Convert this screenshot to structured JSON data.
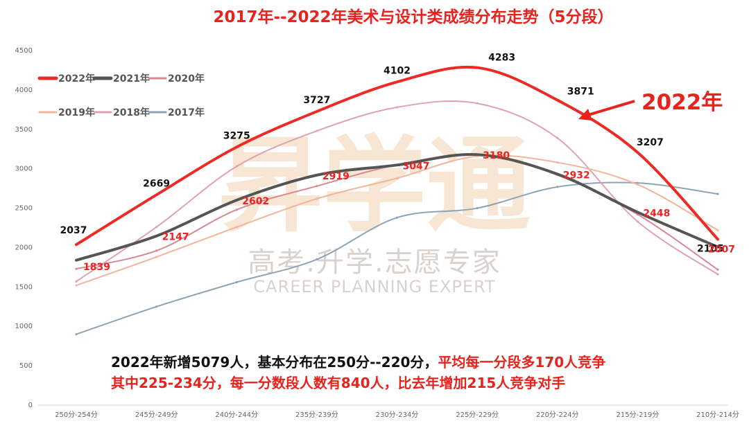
{
  "chart_data": {
    "type": "line",
    "title": "2017年--2022年美术与设计类成绩分布走势（5分段）",
    "categories": [
      "250分-254分",
      "245分-249分",
      "240分-244分",
      "235分-239分",
      "230分-234分",
      "225分-229分",
      "220分-224分",
      "215分-219分",
      "210分-214分"
    ],
    "ylim": [
      0,
      4500
    ],
    "yticks": [
      0,
      500,
      1000,
      1500,
      2000,
      2500,
      3000,
      3500,
      4000,
      4500
    ],
    "grid": false,
    "legend_position": "top-left",
    "series": [
      {
        "name": "2022年",
        "color": "#ee2a26",
        "width": 4,
        "values": [
          2037,
          2669,
          3275,
          3727,
          4102,
          4283,
          3871,
          3207,
          2105
        ],
        "show_labels": true,
        "label_style": "black"
      },
      {
        "name": "2021年",
        "color": "#555555",
        "width": 4,
        "values": [
          1839,
          2147,
          2602,
          2919,
          3047,
          3180,
          2932,
          2448,
          2007
        ],
        "show_labels": true,
        "label_style": "red"
      },
      {
        "name": "2020年",
        "color": "#d98791",
        "width": 2,
        "values": [
          1730,
          1960,
          2480,
          2780,
          3050,
          3180,
          2920,
          2420,
          1720
        ],
        "show_labels": false
      },
      {
        "name": "2019年",
        "color": "#f2b49a",
        "width": 2,
        "values": [
          1520,
          1880,
          2260,
          2620,
          2880,
          3160,
          3080,
          2800,
          2220
        ],
        "show_labels": false
      },
      {
        "name": "2018年",
        "color": "#e0a1b0",
        "width": 2,
        "values": [
          1570,
          2260,
          3030,
          3480,
          3780,
          3830,
          3390,
          2330,
          1660
        ],
        "show_labels": false
      },
      {
        "name": "2017年",
        "color": "#8ea3b6",
        "width": 2,
        "values": [
          900,
          1250,
          1560,
          1850,
          2380,
          2500,
          2770,
          2820,
          2680
        ],
        "show_labels": false
      }
    ],
    "annotations": {
      "callout": "2022年",
      "note_line1_black": "2022年新增5079人，基本分布在250分--220分，",
      "note_line1_red": "平均每一分段多170人竞争",
      "note_line2": "其中225-234分，每一分数段人数有840人，比去年增加215人竞争对手"
    }
  },
  "watermark": {
    "logo_text": "昇学通",
    "cn_text": "高考.升学.志愿专家",
    "en_text": "CAREER PLANNING EXPERT"
  }
}
